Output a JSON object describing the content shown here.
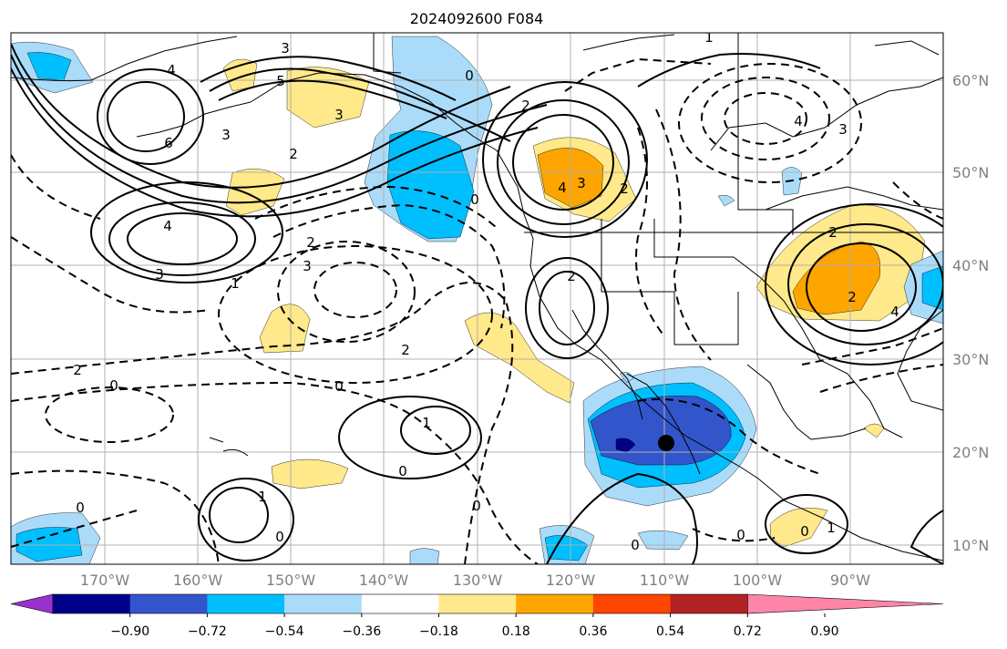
{
  "title": "2024092600 F084",
  "lon_labels": [
    "170°W",
    "160°W",
    "150°W",
    "140°W",
    "130°W",
    "120°W",
    "110°W",
    "100°W",
    "90°W"
  ],
  "lat_labels": [
    "60°N",
    "50°N",
    "40°N",
    "30°N",
    "20°N",
    "10°N"
  ],
  "colorbar": {
    "ticks": [
      "−0.90",
      "−0.72",
      "−0.54",
      "−0.36",
      "−0.18",
      "0.18",
      "0.36",
      "0.54",
      "0.72",
      "0.90"
    ],
    "colors": [
      "#9932cc",
      "#00008b",
      "#3355cc",
      "#00bfff",
      "#aadcfa",
      "#ffffff",
      "#ffe98a",
      "#ffa500",
      "#ff4500",
      "#b22222",
      "#ff85a8"
    ]
  },
  "palette": {
    "blue1": "#aadcfa",
    "blue2": "#00bfff",
    "blue3": "#3355cc",
    "blue4": "#00008b",
    "yellow": "#ffe98a",
    "orange": "#ffa500"
  },
  "contour_labels": [
    {
      "text": "3"
    },
    {
      "text": "4"
    },
    {
      "text": "6"
    },
    {
      "text": "5"
    },
    {
      "text": "3"
    },
    {
      "text": "3"
    },
    {
      "text": "2"
    },
    {
      "text": "4"
    },
    {
      "text": "3"
    },
    {
      "text": "1"
    },
    {
      "text": "2"
    },
    {
      "text": "3"
    },
    {
      "text": "2"
    },
    {
      "text": "0"
    },
    {
      "text": "1"
    },
    {
      "text": "2"
    },
    {
      "text": "2"
    },
    {
      "text": "0"
    },
    {
      "text": "4"
    },
    {
      "text": "3"
    },
    {
      "text": "2"
    },
    {
      "text": "2"
    },
    {
      "text": "3"
    },
    {
      "text": "4"
    },
    {
      "text": "2"
    },
    {
      "text": "2"
    },
    {
      "text": "0"
    },
    {
      "text": "0"
    },
    {
      "text": "1"
    },
    {
      "text": "0"
    },
    {
      "text": "1"
    },
    {
      "text": "0"
    },
    {
      "text": "0"
    },
    {
      "text": "0"
    },
    {
      "text": "0"
    },
    {
      "text": "1"
    },
    {
      "text": "4"
    },
    {
      "text": "0"
    },
    {
      "text": "0"
    }
  ],
  "markers": [
    {
      "name": "storm-center-dot"
    }
  ]
}
